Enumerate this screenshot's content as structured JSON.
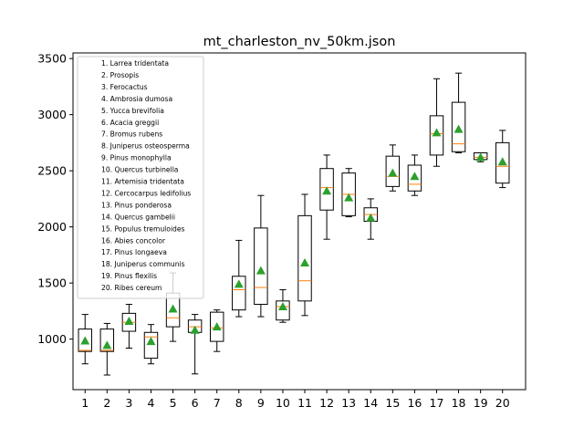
{
  "chart_data": {
    "type": "box",
    "title": "mt_charleston_nv_50km.json",
    "xlabel": "",
    "ylabel": "",
    "ylim": [
      550,
      3550
    ],
    "yticks": [
      1000,
      1500,
      2000,
      2500,
      3000,
      3500
    ],
    "categories": [
      "1",
      "2",
      "3",
      "4",
      "5",
      "6",
      "7",
      "8",
      "9",
      "10",
      "11",
      "12",
      "13",
      "14",
      "15",
      "16",
      "17",
      "18",
      "19",
      "20"
    ],
    "legend_title": "",
    "legend_position": "top-left",
    "legend": [
      "1. Larrea tridentata",
      "2. Prosopis",
      "3. Ferocactus",
      "4. Ambrosia dumosa",
      "5. Yucca brevifolia",
      "6. Acacia greggii",
      "7. Bromus rubens",
      "8. Juniperus osteosperma",
      "9. Pinus monophylla",
      "10. Quercus turbinella",
      "11. Artemisia tridentata",
      "12. Cercocarpus ledifolius",
      "13. Pinus ponderosa",
      "14. Quercus gambelii",
      "15. Populus tremuloides",
      "16. Abies concolor",
      "17. Pinus longaeva",
      "18. Juniperus communis",
      "19. Pinus flexilis",
      "20. Ribes cereum"
    ],
    "boxes": [
      {
        "whislo": 780,
        "q1": 890,
        "med": 900,
        "q3": 1090,
        "whishi": 1220,
        "mean": 985
      },
      {
        "whislo": 680,
        "q1": 890,
        "med": 900,
        "q3": 1090,
        "whishi": 1140,
        "mean": 945
      },
      {
        "whislo": 920,
        "q1": 1070,
        "med": 1150,
        "q3": 1230,
        "whishi": 1310,
        "mean": 1160
      },
      {
        "whislo": 780,
        "q1": 830,
        "med": 1020,
        "q3": 1060,
        "whishi": 1130,
        "mean": 980
      },
      {
        "whislo": 980,
        "q1": 1110,
        "med": 1190,
        "q3": 1410,
        "whishi": 1590,
        "mean": 1270
      },
      {
        "whislo": 690,
        "q1": 1060,
        "med": 1110,
        "q3": 1170,
        "whishi": 1220,
        "mean": 1080
      },
      {
        "whislo": 890,
        "q1": 980,
        "med": 1100,
        "q3": 1240,
        "whishi": 1260,
        "mean": 1110
      },
      {
        "whislo": 1200,
        "q1": 1260,
        "med": 1440,
        "q3": 1560,
        "whishi": 1880,
        "mean": 1490
      },
      {
        "whislo": 1200,
        "q1": 1310,
        "med": 1460,
        "q3": 1990,
        "whishi": 2280,
        "mean": 1610
      },
      {
        "whislo": 1150,
        "q1": 1170,
        "med": 1290,
        "q3": 1340,
        "whishi": 1440,
        "mean": 1290
      },
      {
        "whislo": 1210,
        "q1": 1340,
        "med": 1520,
        "q3": 2100,
        "whishi": 2290,
        "mean": 1680
      },
      {
        "whislo": 1890,
        "q1": 2150,
        "med": 2350,
        "q3": 2520,
        "whishi": 2640,
        "mean": 2320
      },
      {
        "whislo": 2090,
        "q1": 2100,
        "med": 2290,
        "q3": 2480,
        "whishi": 2520,
        "mean": 2260
      },
      {
        "whislo": 1890,
        "q1": 2050,
        "med": 2110,
        "q3": 2170,
        "whishi": 2250,
        "mean": 2080
      },
      {
        "whislo": 2320,
        "q1": 2360,
        "med": 2450,
        "q3": 2630,
        "whishi": 2730,
        "mean": 2480
      },
      {
        "whislo": 2280,
        "q1": 2320,
        "med": 2380,
        "q3": 2550,
        "whishi": 2640,
        "mean": 2450
      },
      {
        "whislo": 2540,
        "q1": 2640,
        "med": 2830,
        "q3": 2990,
        "whishi": 3320,
        "mean": 2840
      },
      {
        "whislo": 2660,
        "q1": 2670,
        "med": 2740,
        "q3": 3110,
        "whishi": 3370,
        "mean": 2870
      },
      {
        "whislo": 2580,
        "q1": 2600,
        "med": 2620,
        "q3": 2660,
        "whishi": 2660,
        "mean": 2620
      },
      {
        "whislo": 2350,
        "q1": 2390,
        "med": 2540,
        "q3": 2750,
        "whishi": 2860,
        "mean": 2580
      }
    ],
    "grid": false,
    "colors": {
      "box_edge": "#000000",
      "median": "#ff7f0e",
      "mean_marker": "#2ca02c",
      "background": "#ffffff"
    }
  }
}
